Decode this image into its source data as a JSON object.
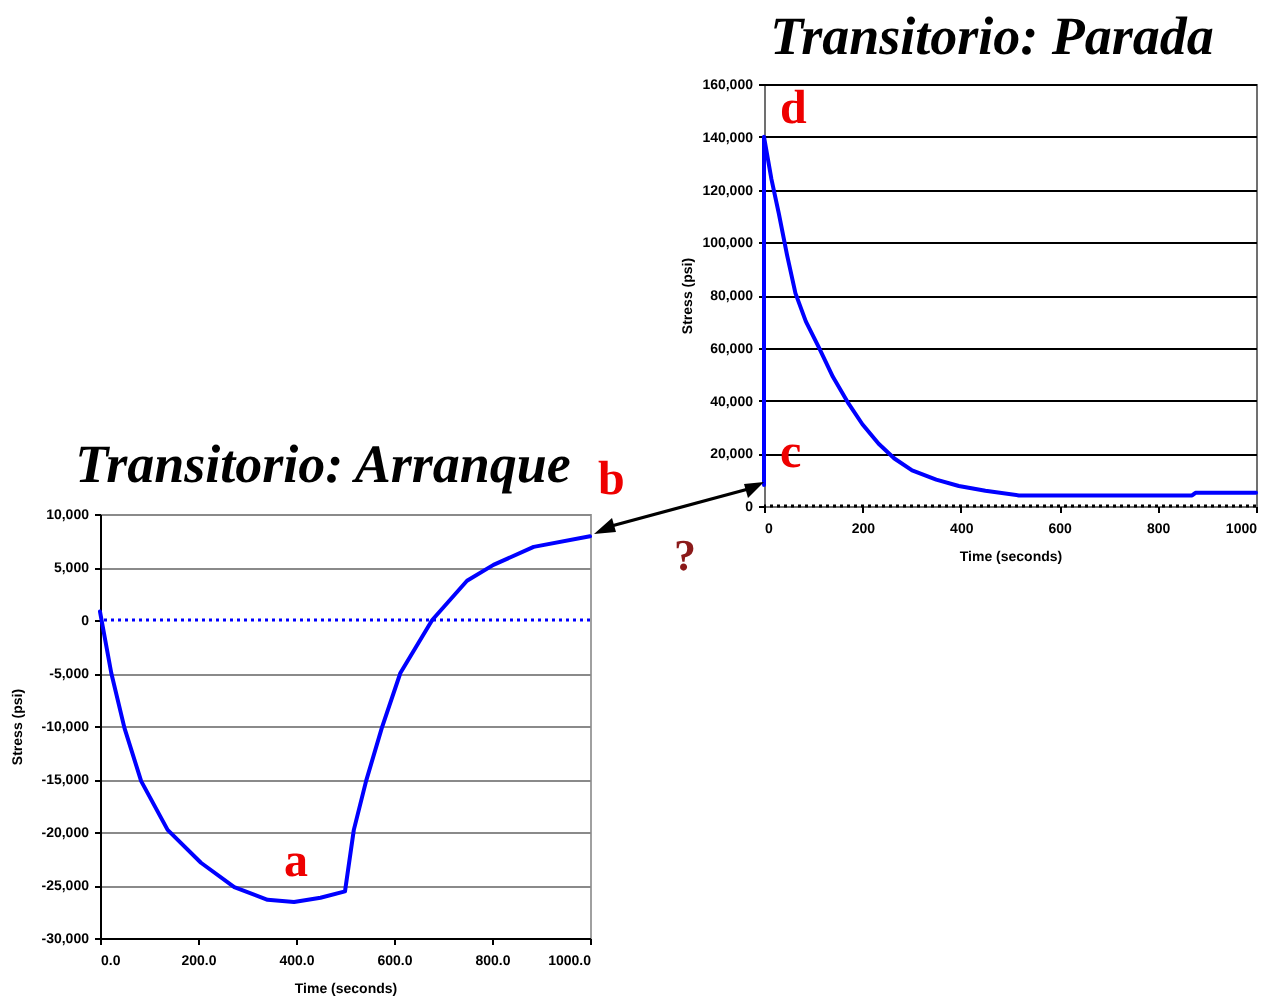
{
  "chart_data": [
    {
      "type": "line",
      "title": "Transitorio: Arranque",
      "xlabel": "Time (seconds)",
      "ylabel": "Stress (psi)",
      "x": [
        0,
        23,
        50,
        84,
        138,
        206,
        274,
        342,
        396,
        450,
        500,
        518,
        543,
        575,
        613,
        678,
        749,
        803,
        885,
        1000
      ],
      "series": [
        {
          "color": "#0000ff",
          "values": [
            800,
            -5000,
            -10200,
            -15200,
            -19800,
            -22900,
            -25200,
            -26400,
            -26600,
            -26200,
            -25600,
            -19800,
            -15200,
            -10200,
            -5000,
            0,
            3700,
            5200,
            6900,
            7900
          ]
        }
      ],
      "xlim": [
        0,
        1000
      ],
      "xticks": [
        {
          "value": 0,
          "label": "0.0"
        },
        {
          "value": 200,
          "label": "200.0"
        },
        {
          "value": 400,
          "label": "400.0"
        },
        {
          "value": 600,
          "label": "600.0"
        },
        {
          "value": 800,
          "label": "800.0"
        },
        {
          "value": 1000,
          "label": "1000.0"
        }
      ],
      "ylim": [
        -30000,
        10000
      ],
      "yticks": [
        {
          "value": -30000,
          "label": "-30,000"
        },
        {
          "value": -25000,
          "label": "-25,000"
        },
        {
          "value": -20000,
          "label": "-20,000"
        },
        {
          "value": -15000,
          "label": "-15,000"
        },
        {
          "value": -10000,
          "label": "-10,000"
        },
        {
          "value": -5000,
          "label": "-5,000"
        },
        0,
        {
          "value": 5000,
          "label": "5,000"
        },
        {
          "value": 10000,
          "label": "10,000"
        }
      ],
      "grid": "y",
      "ref_lines": [
        {
          "axis": "y",
          "value": 0,
          "color": "#0000ff",
          "line_style": "dotted"
        }
      ],
      "annotations": [
        {
          "text": "a",
          "x": 400,
          "y": -26600
        },
        {
          "text": "b",
          "x": 1000,
          "y": 7900
        }
      ]
    },
    {
      "type": "line",
      "title": "Transitorio: Parada",
      "xlabel": "Time (seconds)",
      "ylabel": "Stress (psi)",
      "x": [
        0,
        0,
        15,
        30,
        47,
        64,
        85,
        111,
        140,
        172,
        200,
        233,
        265,
        301,
        350,
        396,
        450,
        518,
        600,
        700,
        800,
        870,
        877,
        1000
      ],
      "series": [
        {
          "color": "#0000ff",
          "values": [
            8000,
            140000,
            124000,
            111000,
            95000,
            80600,
            70000,
            60300,
            49000,
            38800,
            31000,
            23600,
            18000,
            13500,
            10000,
            7600,
            5800,
            4000,
            4000,
            4000,
            4000,
            4000,
            5000,
            5000
          ]
        }
      ],
      "xlim": [
        0,
        1000
      ],
      "xticks": [
        0,
        200,
        400,
        600,
        800,
        1000
      ],
      "ylim": [
        0,
        160000
      ],
      "yticks": [
        0,
        {
          "value": 20000,
          "label": "20,000"
        },
        {
          "value": 40000,
          "label": "40,000"
        },
        {
          "value": 60000,
          "label": "60,000"
        },
        {
          "value": 80000,
          "label": "80,000"
        },
        {
          "value": 100000,
          "label": "100,000"
        },
        {
          "value": 120000,
          "label": "120,000"
        },
        {
          "value": 140000,
          "label": "140,000"
        },
        {
          "value": 160000,
          "label": "160,000"
        }
      ],
      "grid": "y",
      "ref_lines": [
        {
          "axis": "y",
          "value": 0,
          "color": "#000000",
          "line_style": "dotted"
        }
      ],
      "annotations": [
        {
          "text": "d",
          "x": 0,
          "y": 140000
        },
        {
          "text": "c",
          "x": 0,
          "y": 8000
        },
        "?"
      ]
    }
  ]
}
